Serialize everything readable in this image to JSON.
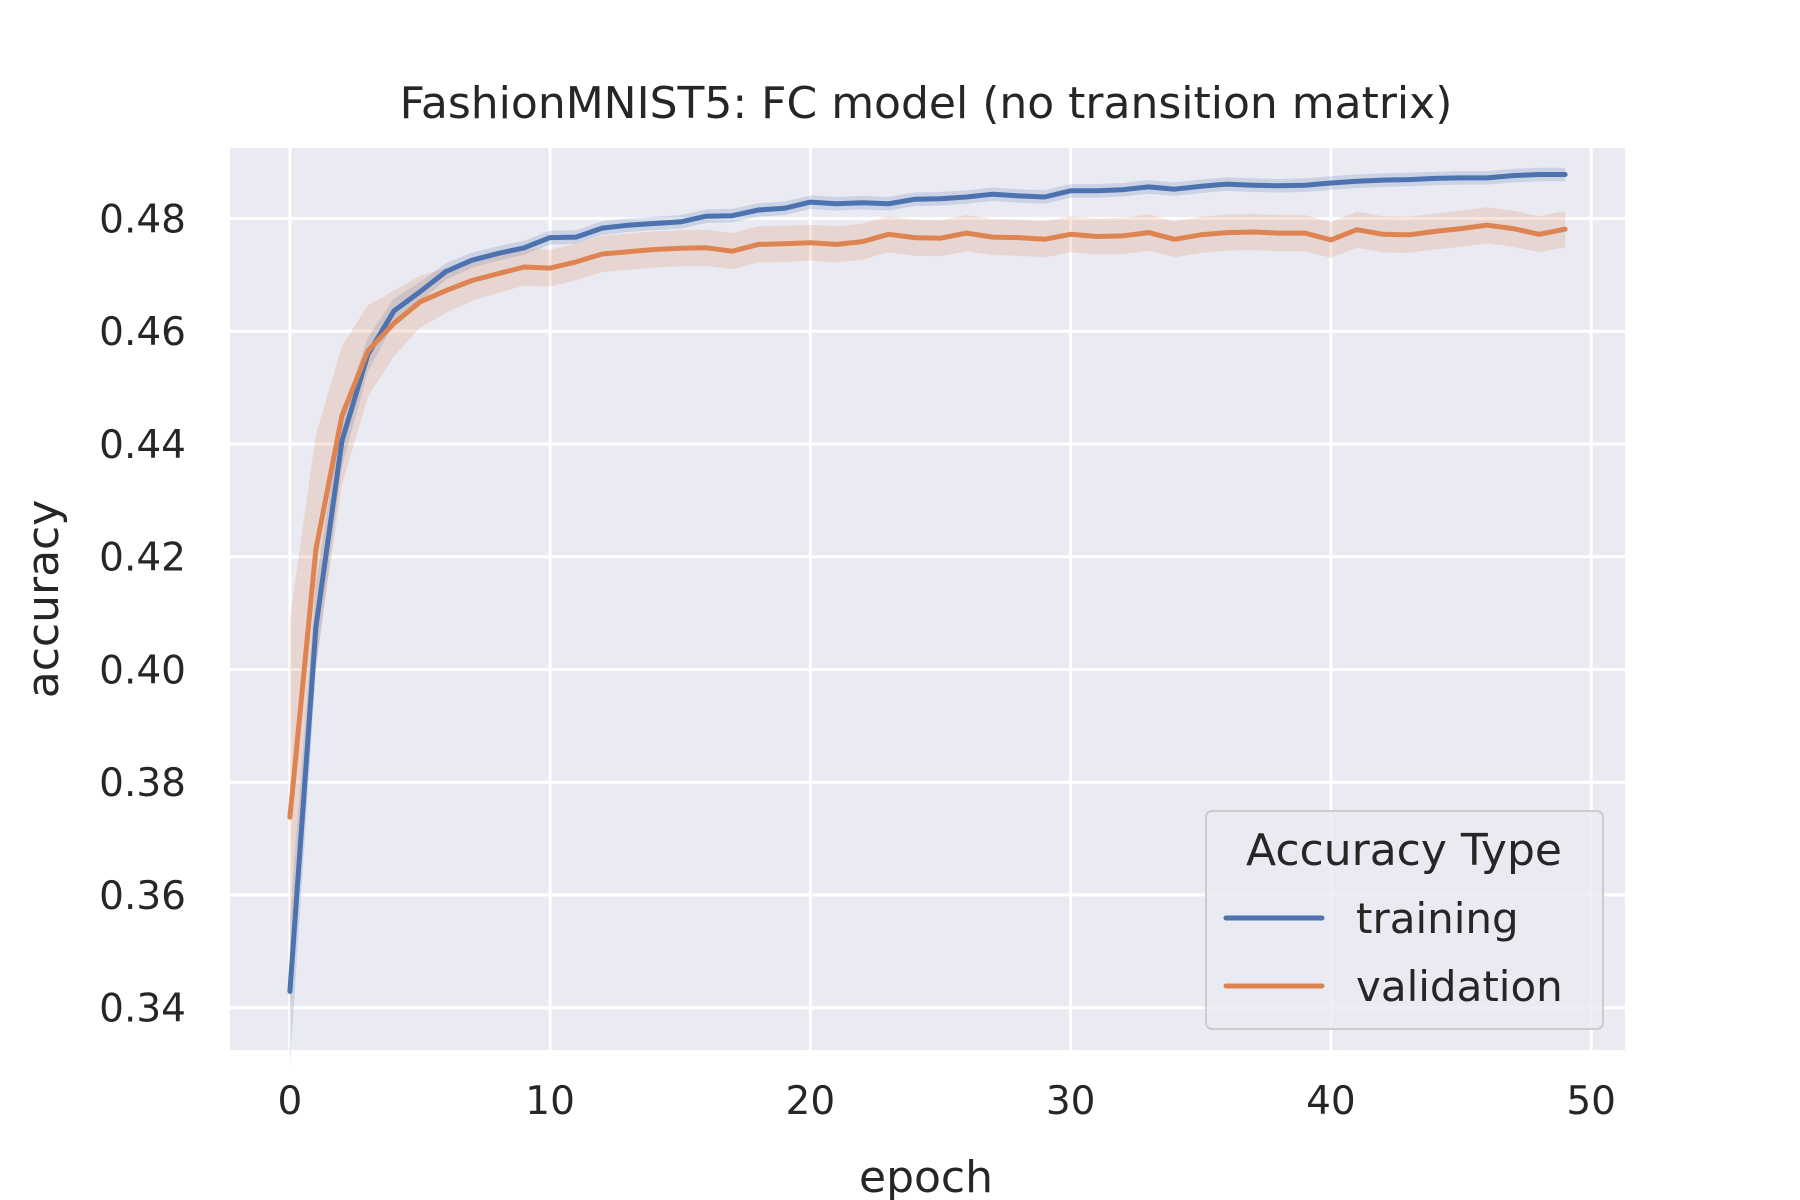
{
  "chart_data": {
    "type": "line",
    "title": "FashionMNIST5: FC model (no transition matrix)",
    "xlabel": "epoch",
    "ylabel": "accuracy",
    "xlim": [
      -2.3,
      51.3
    ],
    "ylim": [
      0.3325,
      0.4925
    ],
    "x_ticks": [
      0,
      10,
      20,
      30,
      40,
      50
    ],
    "y_ticks": [
      0.34,
      0.36,
      0.38,
      0.4,
      0.42,
      0.44,
      0.46,
      0.48
    ],
    "y_tick_labels": [
      "0.34",
      "0.36",
      "0.38",
      "0.40",
      "0.42",
      "0.44",
      "0.46",
      "0.48"
    ],
    "grid": true,
    "legend": {
      "title": "Accuracy Type",
      "position": "bottom-right"
    },
    "series": [
      {
        "name": "training",
        "color": "#4c72b0",
        "values": [
          0.3429,
          0.4075,
          0.4405,
          0.4559,
          0.4636,
          0.467,
          0.4706,
          0.4726,
          0.4738,
          0.4748,
          0.4766,
          0.4767,
          0.4783,
          0.4788,
          0.4791,
          0.4794,
          0.4804,
          0.4805,
          0.4815,
          0.4818,
          0.4829,
          0.4826,
          0.4828,
          0.4826,
          0.4834,
          0.4835,
          0.4838,
          0.4843,
          0.484,
          0.4838,
          0.4849,
          0.4849,
          0.4851,
          0.4856,
          0.4852,
          0.4857,
          0.4861,
          0.4859,
          0.4858,
          0.4859,
          0.4863,
          0.4866,
          0.4868,
          0.4869,
          0.4871,
          0.4872,
          0.4872,
          0.4876,
          0.4878,
          0.4878
        ],
        "band": 0.0012
      },
      {
        "name": "validation",
        "color": "#dd8452",
        "values": [
          0.3738,
          0.4213,
          0.445,
          0.4565,
          0.4614,
          0.4652,
          0.4672,
          0.469,
          0.4702,
          0.4714,
          0.4712,
          0.4723,
          0.4737,
          0.4741,
          0.4745,
          0.4747,
          0.4748,
          0.4742,
          0.4754,
          0.4755,
          0.4757,
          0.4754,
          0.4759,
          0.4772,
          0.4766,
          0.4765,
          0.4774,
          0.4767,
          0.4766,
          0.4763,
          0.4772,
          0.4768,
          0.4769,
          0.4775,
          0.4763,
          0.4771,
          0.4775,
          0.4776,
          0.4774,
          0.4774,
          0.4762,
          0.478,
          0.4772,
          0.4771,
          0.4777,
          0.4782,
          0.4788,
          0.4782,
          0.4772,
          0.4781
        ],
        "band": 0.0032
      }
    ]
  }
}
